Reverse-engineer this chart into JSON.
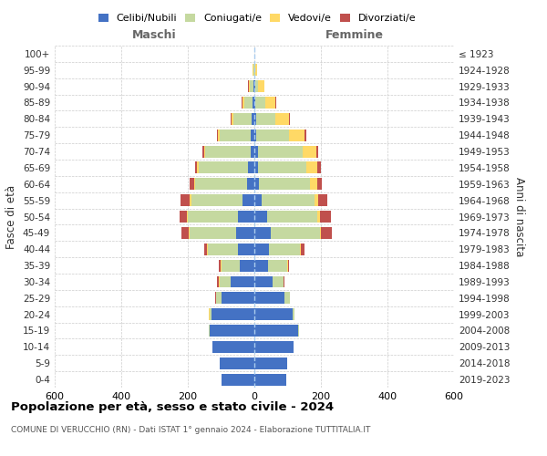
{
  "age_groups": [
    "0-4",
    "5-9",
    "10-14",
    "15-19",
    "20-24",
    "25-29",
    "30-34",
    "35-39",
    "40-44",
    "45-49",
    "50-54",
    "55-59",
    "60-64",
    "65-69",
    "70-74",
    "75-79",
    "80-84",
    "85-89",
    "90-94",
    "95-99",
    "100+"
  ],
  "birth_years": [
    "2019-2023",
    "2014-2018",
    "2009-2013",
    "2004-2008",
    "1999-2003",
    "1994-1998",
    "1989-1993",
    "1984-1988",
    "1979-1983",
    "1974-1978",
    "1969-1973",
    "1964-1968",
    "1959-1963",
    "1954-1958",
    "1949-1953",
    "1944-1948",
    "1939-1943",
    "1934-1938",
    "1929-1933",
    "1924-1928",
    "≤ 1923"
  ],
  "males_celibi": [
    100,
    105,
    125,
    135,
    130,
    100,
    70,
    45,
    50,
    55,
    50,
    35,
    22,
    18,
    12,
    10,
    8,
    5,
    3,
    1,
    0
  ],
  "males_coniugati": [
    0,
    0,
    0,
    2,
    5,
    15,
    35,
    55,
    90,
    140,
    150,
    155,
    155,
    150,
    135,
    95,
    55,
    25,
    10,
    3,
    0
  ],
  "males_vedovi": [
    0,
    0,
    0,
    0,
    1,
    0,
    1,
    1,
    2,
    3,
    3,
    5,
    5,
    5,
    5,
    5,
    5,
    6,
    4,
    1,
    0
  ],
  "males_divorziati": [
    0,
    0,
    0,
    0,
    1,
    2,
    5,
    5,
    8,
    22,
    22,
    28,
    12,
    5,
    5,
    3,
    2,
    1,
    1,
    0,
    0
  ],
  "fem_nubili": [
    95,
    98,
    118,
    132,
    115,
    90,
    55,
    42,
    45,
    48,
    38,
    22,
    15,
    12,
    10,
    6,
    5,
    4,
    2,
    1,
    0
  ],
  "fem_coniugate": [
    0,
    0,
    0,
    2,
    5,
    16,
    32,
    56,
    92,
    148,
    152,
    158,
    152,
    145,
    135,
    98,
    58,
    28,
    10,
    3,
    0
  ],
  "fem_vedove": [
    0,
    0,
    0,
    0,
    0,
    0,
    1,
    2,
    3,
    5,
    8,
    12,
    22,
    32,
    42,
    48,
    42,
    32,
    18,
    5,
    0
  ],
  "fem_divorziate": [
    0,
    0,
    0,
    0,
    1,
    2,
    3,
    5,
    10,
    32,
    32,
    28,
    15,
    10,
    5,
    3,
    2,
    2,
    1,
    0,
    0
  ],
  "color_celibi": "#4472C4",
  "color_coniugati": "#C5D9A0",
  "color_vedovi": "#FFD966",
  "color_divorziati": "#C0504D",
  "xlim": 600,
  "xticks": [
    -600,
    -400,
    -200,
    0,
    200,
    400,
    600
  ],
  "title": "Popolazione per età, sesso e stato civile - 2024",
  "subtitle": "COMUNE DI VERUCCHIO (RN) - Dati ISTAT 1° gennaio 2024 - Elaborazione TUTTITALIA.IT",
  "label_maschi": "Maschi",
  "label_femmine": "Femmine",
  "ylabel_left": "Fasce di età",
  "ylabel_right": "Anni di nascita",
  "legend_labels": [
    "Celibi/Nubili",
    "Coniugati/e",
    "Vedovi/e",
    "Divorziati/e"
  ]
}
